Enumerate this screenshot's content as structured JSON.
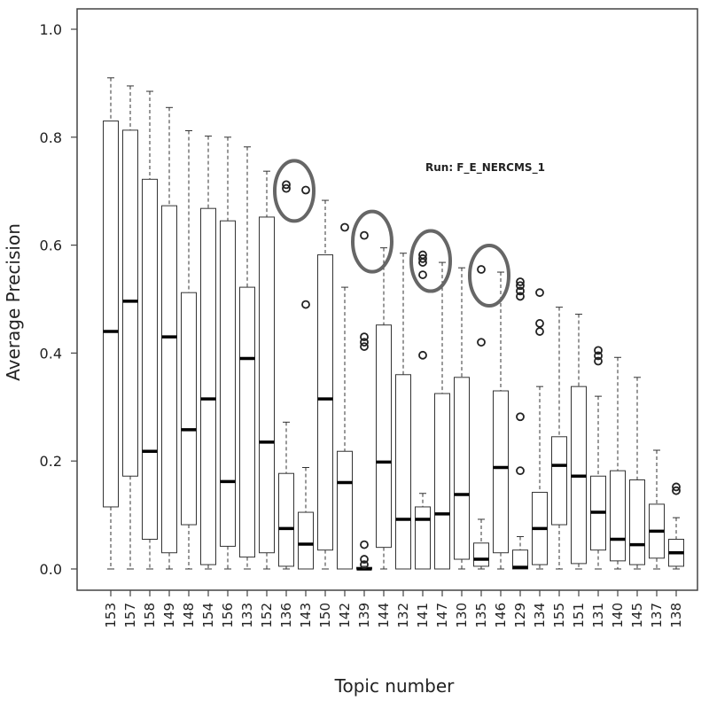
{
  "chart_data": {
    "type": "boxplot",
    "run_label": "Run: F_E_NERCMS_1",
    "xlabel": "Topic number",
    "ylabel": "Average Precision",
    "ylim": [
      0,
      1.0
    ],
    "yticks": [
      "0.0",
      "0.2",
      "0.4",
      "0.6",
      "0.8",
      "1.0"
    ],
    "ytick_values": [
      0,
      0.2,
      0.4,
      0.6,
      0.8,
      1.0
    ],
    "categories": [
      "153",
      "157",
      "158",
      "149",
      "148",
      "154",
      "156",
      "133",
      "152",
      "136",
      "143",
      "150",
      "142",
      "139",
      "144",
      "132",
      "141",
      "147",
      "130",
      "135",
      "146",
      "129",
      "134",
      "155",
      "151",
      "131",
      "140",
      "145",
      "137",
      "138"
    ],
    "boxes": [
      {
        "topic": "153",
        "whislo": 0.0,
        "q1": 0.115,
        "med": 0.44,
        "q3": 0.83,
        "whishi": 0.91,
        "fliers": []
      },
      {
        "topic": "157",
        "whislo": 0.0,
        "q1": 0.172,
        "med": 0.496,
        "q3": 0.813,
        "whishi": 0.895,
        "fliers": []
      },
      {
        "topic": "158",
        "whislo": 0.0,
        "q1": 0.055,
        "med": 0.218,
        "q3": 0.722,
        "whishi": 0.885,
        "fliers": []
      },
      {
        "topic": "149",
        "whislo": 0.0,
        "q1": 0.03,
        "med": 0.43,
        "q3": 0.673,
        "whishi": 0.855,
        "fliers": []
      },
      {
        "topic": "148",
        "whislo": 0.0,
        "q1": 0.082,
        "med": 0.258,
        "q3": 0.512,
        "whishi": 0.812,
        "fliers": []
      },
      {
        "topic": "154",
        "whislo": 0.0,
        "q1": 0.008,
        "med": 0.315,
        "q3": 0.668,
        "whishi": 0.802,
        "fliers": []
      },
      {
        "topic": "156",
        "whislo": 0.0,
        "q1": 0.042,
        "med": 0.162,
        "q3": 0.645,
        "whishi": 0.8,
        "fliers": []
      },
      {
        "topic": "133",
        "whislo": 0.0,
        "q1": 0.022,
        "med": 0.39,
        "q3": 0.522,
        "whishi": 0.782,
        "fliers": []
      },
      {
        "topic": "152",
        "whislo": 0.0,
        "q1": 0.03,
        "med": 0.235,
        "q3": 0.652,
        "whishi": 0.737,
        "fliers": []
      },
      {
        "topic": "136",
        "whislo": 0.0,
        "q1": 0.005,
        "med": 0.075,
        "q3": 0.177,
        "whishi": 0.272,
        "fliers": [
          0.712,
          0.705
        ]
      },
      {
        "topic": "143",
        "whislo": 0.0,
        "q1": 0.0,
        "med": 0.046,
        "q3": 0.105,
        "whishi": 0.188,
        "fliers": [
          0.49,
          0.702
        ]
      },
      {
        "topic": "150",
        "whislo": 0.0,
        "q1": 0.035,
        "med": 0.315,
        "q3": 0.582,
        "whishi": 0.683,
        "fliers": []
      },
      {
        "topic": "142",
        "whislo": 0.0,
        "q1": 0.0,
        "med": 0.16,
        "q3": 0.218,
        "whishi": 0.522,
        "fliers": [
          0.633
        ]
      },
      {
        "topic": "139",
        "whislo": 0.0,
        "q1": 0.0,
        "med": 0.0,
        "q3": 0.003,
        "whishi": 0.005,
        "fliers": [
          0.045,
          0.018,
          0.008,
          0.412,
          0.42,
          0.43,
          0.618
        ]
      },
      {
        "topic": "144",
        "whislo": 0.0,
        "q1": 0.04,
        "med": 0.198,
        "q3": 0.452,
        "whishi": 0.595,
        "fliers": []
      },
      {
        "topic": "132",
        "whislo": 0.0,
        "q1": 0.0,
        "med": 0.092,
        "q3": 0.36,
        "whishi": 0.585,
        "fliers": []
      },
      {
        "topic": "141",
        "whislo": 0.0,
        "q1": 0.0,
        "med": 0.092,
        "q3": 0.115,
        "whishi": 0.14,
        "fliers": [
          0.396,
          0.545,
          0.568,
          0.575,
          0.582
        ]
      },
      {
        "topic": "147",
        "whislo": 0.0,
        "q1": 0.0,
        "med": 0.102,
        "q3": 0.325,
        "whishi": 0.568,
        "fliers": []
      },
      {
        "topic": "130",
        "whislo": 0.0,
        "q1": 0.018,
        "med": 0.138,
        "q3": 0.355,
        "whishi": 0.558,
        "fliers": []
      },
      {
        "topic": "135",
        "whislo": 0.0,
        "q1": 0.005,
        "med": 0.018,
        "q3": 0.048,
        "whishi": 0.092,
        "fliers": [
          0.42,
          0.555
        ]
      },
      {
        "topic": "146",
        "whislo": 0.0,
        "q1": 0.03,
        "med": 0.188,
        "q3": 0.33,
        "whishi": 0.55,
        "fliers": []
      },
      {
        "topic": "129",
        "whislo": 0.0,
        "q1": 0.0,
        "med": 0.003,
        "q3": 0.035,
        "whishi": 0.06,
        "fliers": [
          0.182,
          0.282,
          0.505,
          0.515,
          0.525,
          0.532
        ]
      },
      {
        "topic": "134",
        "whislo": 0.0,
        "q1": 0.008,
        "med": 0.075,
        "q3": 0.142,
        "whishi": 0.338,
        "fliers": [
          0.44,
          0.455,
          0.512
        ]
      },
      {
        "topic": "155",
        "whislo": 0.0,
        "q1": 0.082,
        "med": 0.192,
        "q3": 0.245,
        "whishi": 0.485,
        "fliers": []
      },
      {
        "topic": "151",
        "whislo": 0.0,
        "q1": 0.01,
        "med": 0.172,
        "q3": 0.338,
        "whishi": 0.472,
        "fliers": []
      },
      {
        "topic": "131",
        "whislo": 0.0,
        "q1": 0.035,
        "med": 0.105,
        "q3": 0.172,
        "whishi": 0.32,
        "fliers": [
          0.385,
          0.395,
          0.405
        ]
      },
      {
        "topic": "140",
        "whislo": 0.0,
        "q1": 0.015,
        "med": 0.055,
        "q3": 0.182,
        "whishi": 0.392,
        "fliers": []
      },
      {
        "topic": "145",
        "whislo": 0.0,
        "q1": 0.008,
        "med": 0.045,
        "q3": 0.165,
        "whishi": 0.355,
        "fliers": []
      },
      {
        "topic": "137",
        "whislo": 0.0,
        "q1": 0.02,
        "med": 0.07,
        "q3": 0.12,
        "whishi": 0.22,
        "fliers": []
      },
      {
        "topic": "138",
        "whislo": 0.0,
        "q1": 0.005,
        "med": 0.03,
        "q3": 0.055,
        "whishi": 0.095,
        "fliers": [
          0.145,
          0.152
        ]
      }
    ],
    "highlighted_topics": [
      "136",
      "139",
      "141",
      "135"
    ],
    "highlight_color": "#666666",
    "grid": false
  }
}
